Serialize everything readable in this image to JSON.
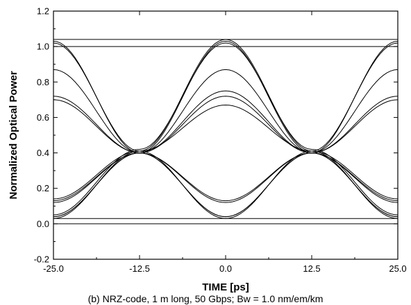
{
  "chart_data": {
    "type": "line",
    "title": "",
    "xlabel": "TIME [ps]",
    "ylabel": "Normalized Optical Power",
    "xlim": [
      -25.0,
      25.0
    ],
    "ylim": [
      -0.2,
      1.2
    ],
    "xticks": [
      "-25.0",
      "-12.5",
      "0.0",
      "12.5",
      "25.0"
    ],
    "yticks": [
      "-0.2",
      "0.0",
      "0.2",
      "0.4",
      "0.6",
      "0.8",
      "1.0",
      "1.2"
    ],
    "grid": false,
    "legend": "none",
    "caption": "(b)  NRZ-code, 1 m long, 50 Gbps;  Bw = 1.0 nm/em/km",
    "series": [
      {
        "x": [
          -25,
          -12.5,
          0,
          12.5,
          25
        ],
        "y": [
          0.04,
          0.4,
          1.03,
          0.4,
          0.04
        ]
      },
      {
        "x": [
          -25,
          -12.5,
          0,
          12.5,
          25
        ],
        "y": [
          0.03,
          0.41,
          1.04,
          0.41,
          0.03
        ]
      },
      {
        "x": [
          -25,
          -12.5,
          0,
          12.5,
          25
        ],
        "y": [
          0.05,
          0.42,
          1.02,
          0.42,
          0.05
        ]
      },
      {
        "x": [
          -25,
          -12.5,
          0,
          12.5,
          25
        ],
        "y": [
          0.12,
          0.4,
          0.75,
          0.4,
          0.12
        ]
      },
      {
        "x": [
          -25,
          -12.5,
          0,
          12.5,
          25
        ],
        "y": [
          0.13,
          0.4,
          0.72,
          0.4,
          0.13
        ]
      },
      {
        "x": [
          -25,
          -12.5,
          0,
          12.5,
          25
        ],
        "y": [
          0.14,
          0.41,
          0.67,
          0.41,
          0.14
        ]
      },
      {
        "x": [
          -25,
          -12.5,
          0,
          12.5,
          25
        ],
        "y": [
          1.03,
          0.4,
          0.04,
          0.4,
          1.03
        ]
      },
      {
        "x": [
          -25,
          -12.5,
          0,
          12.5,
          25
        ],
        "y": [
          1.02,
          0.41,
          0.03,
          0.41,
          1.02
        ]
      },
      {
        "x": [
          -25,
          -12.5,
          0,
          12.5,
          25
        ],
        "y": [
          0.72,
          0.4,
          0.13,
          0.4,
          0.72
        ]
      },
      {
        "x": [
          -25,
          -12.5,
          0,
          12.5,
          25
        ],
        "y": [
          0.7,
          0.4,
          0.12,
          0.4,
          0.7
        ]
      },
      {
        "x": [
          -25,
          -12.5,
          0,
          12.5,
          25
        ],
        "y": [
          0.87,
          0.4,
          0.04,
          0.4,
          0.87
        ]
      },
      {
        "x": [
          -25,
          -12.5,
          0,
          12.5,
          25
        ],
        "y": [
          0.04,
          0.4,
          0.87,
          0.4,
          0.04
        ]
      },
      {
        "x": [
          -25,
          -12.5,
          0,
          12.5,
          25
        ],
        "y": [
          1.04,
          1.04,
          1.04,
          1.04,
          1.04
        ]
      },
      {
        "x": [
          -25,
          -12.5,
          0,
          12.5,
          25
        ],
        "y": [
          1.0,
          1.0,
          1.0,
          1.0,
          1.0
        ]
      },
      {
        "x": [
          -25,
          -12.5,
          0,
          12.5,
          25
        ],
        "y": [
          0.03,
          0.03,
          0.03,
          0.03,
          0.03
        ]
      },
      {
        "x": [
          -25,
          -12.5,
          0,
          12.5,
          25
        ],
        "y": [
          0.0,
          0.0,
          0.0,
          0.0,
          0.0
        ]
      }
    ]
  }
}
